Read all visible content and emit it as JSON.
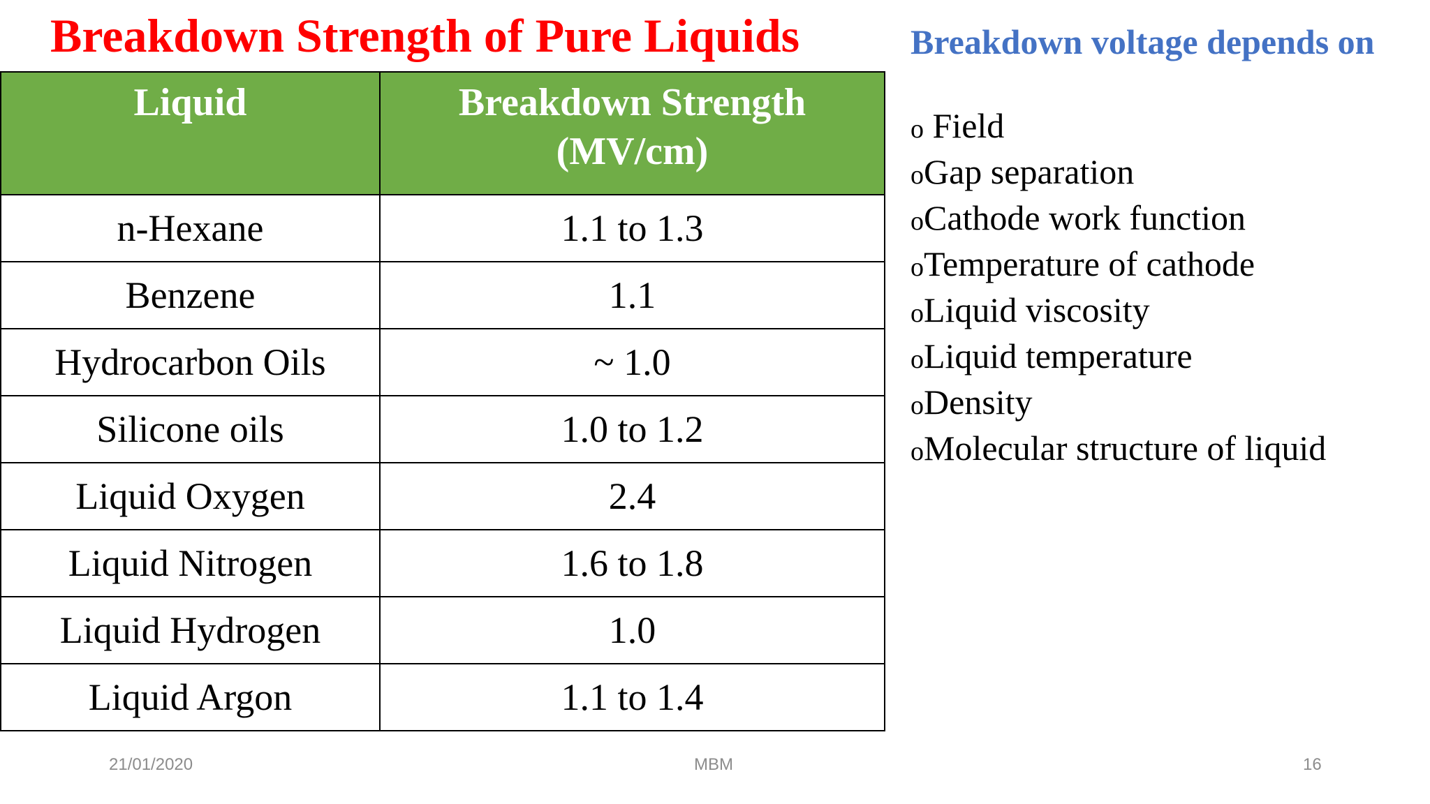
{
  "slide": {
    "title": "Breakdown Strength of Pure Liquids",
    "side_title": "Breakdown voltage depends on"
  },
  "table": {
    "headers": [
      "Liquid",
      "Breakdown Strength (MV/cm)"
    ],
    "header_lines": {
      "col1": "Liquid",
      "col2_line1": "Breakdown Strength",
      "col2_line2": "(MV/cm)"
    },
    "rows": [
      {
        "liquid": "n-Hexane",
        "strength": "1.1 to 1.3"
      },
      {
        "liquid": "Benzene",
        "strength": "1.1"
      },
      {
        "liquid": "Hydrocarbon Oils",
        "strength": "~ 1.0"
      },
      {
        "liquid": "Silicone oils",
        "strength": "1.0 to 1.2"
      },
      {
        "liquid": "Liquid Oxygen",
        "strength": "2.4"
      },
      {
        "liquid": "Liquid Nitrogen",
        "strength": "1.6 to 1.8"
      },
      {
        "liquid": "Liquid Hydrogen",
        "strength": "1.0"
      },
      {
        "liquid": "Liquid Argon",
        "strength": "1.1 to 1.4"
      }
    ]
  },
  "factors": {
    "bullet": "o",
    "items": [
      "Field",
      "Gap separation",
      "Cathode work function",
      "Temperature of cathode",
      "Liquid viscosity",
      "Liquid temperature",
      "Density",
      "Molecular structure of liquid"
    ]
  },
  "footer": {
    "date": "21/01/2020",
    "center": "MBM",
    "page": "16"
  },
  "colors": {
    "title": "#ff0000",
    "side_title": "#4472c4",
    "header_bg": "#70ad47",
    "header_text": "#ffffff",
    "footer_text": "#8c8c8c"
  }
}
